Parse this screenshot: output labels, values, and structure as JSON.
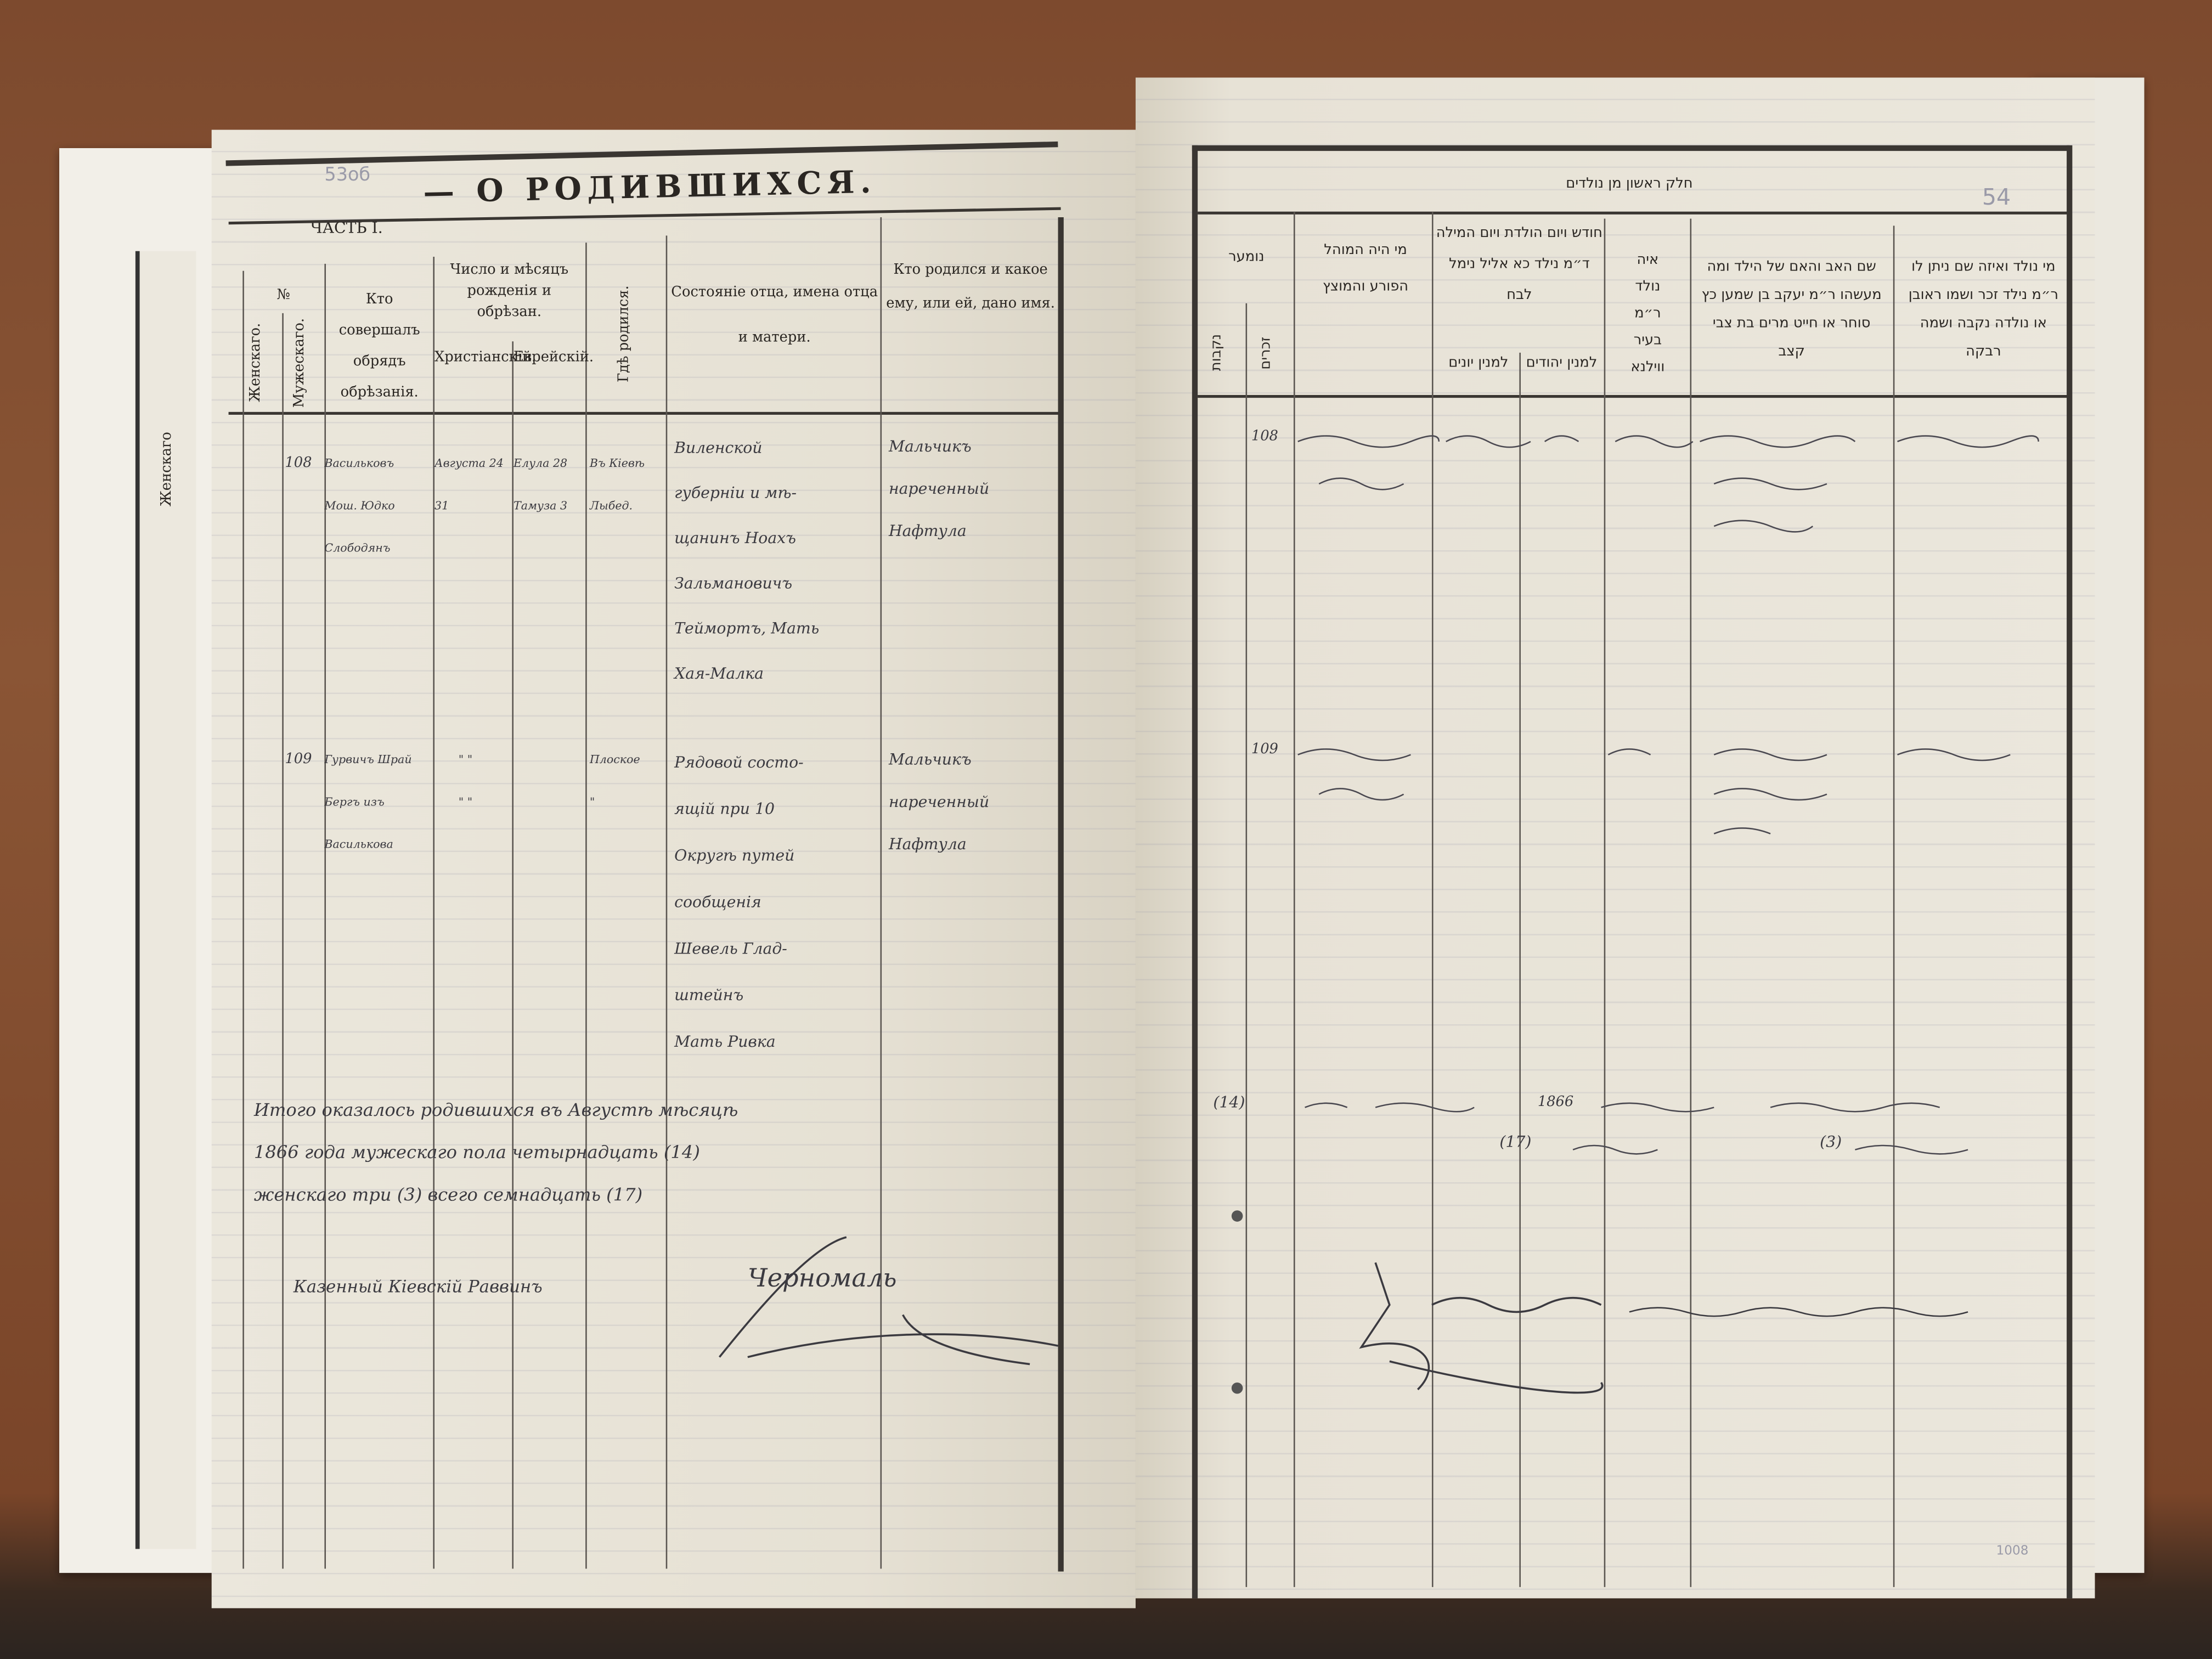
{
  "left_page": {
    "page_number": "53об",
    "part_label": "ЧАСТЬ I.",
    "title": "— О РОДИВШИХСЯ.",
    "spine_label": "Женскаго",
    "headers": {
      "number": "№",
      "female": "Женскаго.",
      "male": "Мужескаго.",
      "circumciser": "Кто совершалъ обрядъ обрѣзанія.",
      "date_group": "Число и мѣсяцъ рожденія и обрѣзан.",
      "christian": "Христіанскій.",
      "jewish": "Еврейскій.",
      "place": "Гдѣ родился.",
      "parents": "Состояніе отца, имена отца и матери.",
      "child": "Кто родился и какое ему, или ей, дано имя."
    },
    "entries": [
      {
        "number": "108",
        "circumciser": "Васильковъ\nМош. Юдко\nСлободянъ",
        "christian": "Августа 24\n31",
        "jewish": "Елула 28\nТамуза 3",
        "place": "Въ Кіевѣ\nЛыбед.",
        "parents": "Виленской\nгуберніи и мѣ-\nщанинъ Ноахъ\nЗальмановичъ\nТеймортъ, Мать\nХая-Малка",
        "child": "Мальчикъ\nнареченный\nНафтула"
      },
      {
        "number": "109",
        "circumciser": "Гурвичъ Шрай\nБергъ изъ\nВасилькова",
        "christian": "\" \"\n\" \"",
        "jewish": "",
        "place": "Плоское\n\"",
        "parents": "Рядовой состо-\nящій при 10\nОкругѣ путей\nсообщенія\nШевель Глад-\nштейнъ\nМать Ривка",
        "child": "Мальчикъ\nнареченный\nНафтула"
      }
    ],
    "total": "Итого оказалось родившихся въ Августѣ мѣсяцѣ\n1866 года мужескаго пола четырнадцать (14)\nженскаго три (3) всего семнадцать (17)",
    "signature_text": "Казенный Кіевскій Раввинъ",
    "signature_name": "Черномаль"
  },
  "right_page": {
    "page_number": "54",
    "title": "חלק ראשון מן נולדים",
    "headers": {
      "number": "נומער",
      "male": "זכרים",
      "female": "נקבות",
      "mohel": "מי היה המוהל הפורע והמוצץ",
      "dates": "חודש ויום הולדת ויום המילה ד״מ נילד כא אליל נימל לבח",
      "gentile": "למנין יונים",
      "jewish": "למנין יהודים",
      "place": "איה נולד ר״מ בעיר ווילנא",
      "parents": "שם האב והאם של הילד ומה מעשהו ר״מ יעקב בן שמען כץ סוחר או חייט מרים בת צבי קצב",
      "child": "מי נולד ואיזה שם ניתן לו ר״מ נילד זכר ושמו ראובן או נולדה נקבה ושמה רבקה"
    },
    "entries": [
      {
        "number": "108"
      },
      {
        "number": "109"
      }
    ],
    "total_numbers": [
      "(14)",
      "1866",
      "(3)",
      "(17)"
    ],
    "corner_note": "1008"
  }
}
